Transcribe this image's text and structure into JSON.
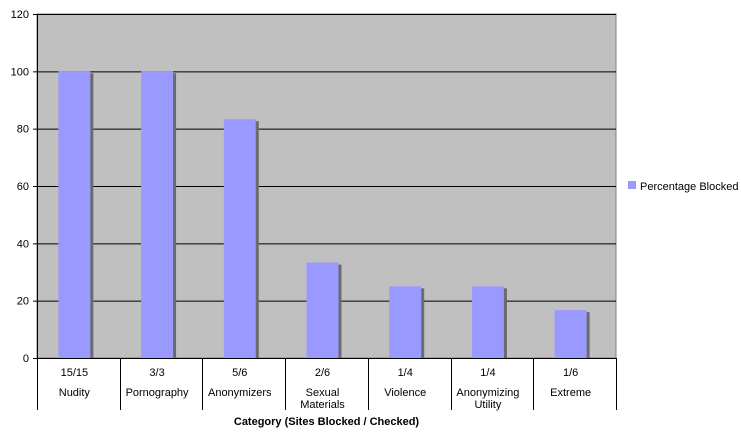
{
  "chart_data": {
    "type": "bar",
    "xlabel": "Category (Sites Blocked / Checked)",
    "ylabel": "",
    "ylim": [
      0,
      120
    ],
    "yticks": [
      0,
      20,
      40,
      60,
      80,
      100,
      120
    ],
    "grid": true,
    "legend": "right",
    "categories": [
      {
        "top": "15/15",
        "lines": [
          "Nudity"
        ]
      },
      {
        "top": "3/3",
        "lines": [
          "Pornography"
        ]
      },
      {
        "top": "5/6",
        "lines": [
          "Anonymizers"
        ]
      },
      {
        "top": "2/6",
        "lines": [
          "Sexual",
          "Materials"
        ]
      },
      {
        "top": "1/4",
        "lines": [
          "Violence"
        ]
      },
      {
        "top": "1/4",
        "lines": [
          "Anonymizing",
          "Utility"
        ]
      },
      {
        "top": "1/6",
        "lines": [
          "Extreme"
        ]
      }
    ],
    "series": [
      {
        "name": "Percentage Blocked",
        "color": "#9999ff",
        "values": [
          100,
          100,
          83.3,
          33.3,
          25,
          25,
          16.7
        ]
      }
    ],
    "plot_background": "#c0c0c0"
  }
}
